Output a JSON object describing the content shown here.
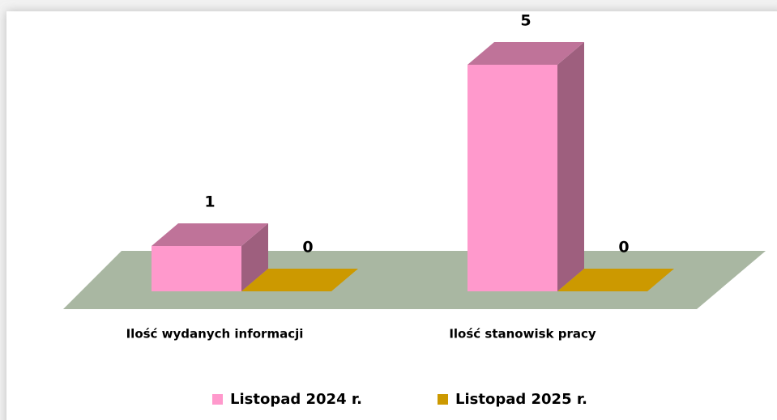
{
  "chart_data": {
    "type": "bar3d",
    "categories": [
      "Ilość wydanych informacji",
      "Ilość stanowisk pracy"
    ],
    "series": [
      {
        "name": "Listopad 2024 r.",
        "color": "#ff99cc",
        "values": [
          1,
          5
        ]
      },
      {
        "name": "Listopad 2025 r.",
        "color": "#cc9900",
        "values": [
          0,
          0
        ]
      }
    ],
    "legend": "bottom"
  }
}
